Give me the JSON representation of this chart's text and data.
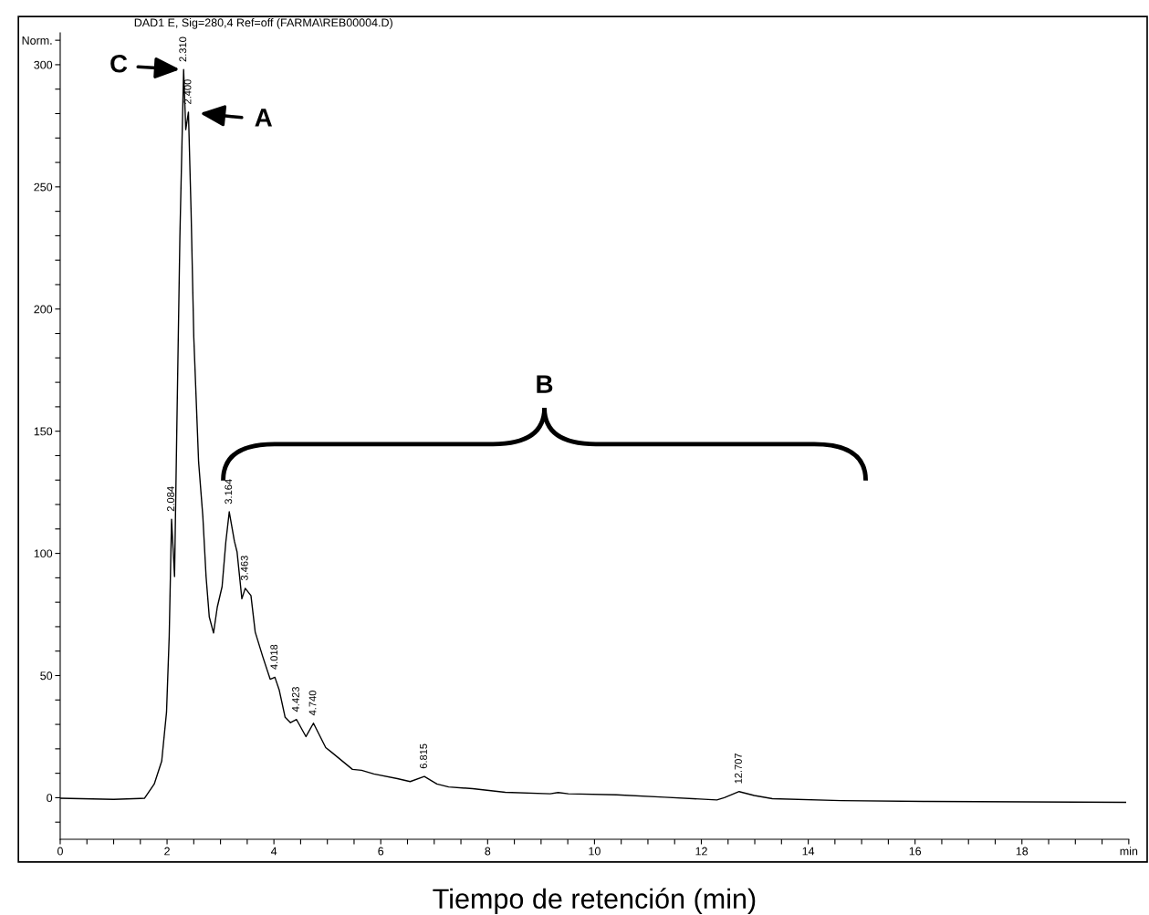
{
  "chart_data": {
    "type": "line",
    "title": "DAD1 E, Sig=280,4 Ref=off (FARMA\\REB00004.D)",
    "xlabel": "Tiempo de retención (min)",
    "x": [
      0,
      1.0,
      1.5,
      1.58,
      1.76,
      1.9,
      1.99,
      2.04,
      2.084,
      2.14,
      2.18,
      2.24,
      2.31,
      2.35,
      2.4,
      2.45,
      2.5,
      2.59,
      2.67,
      2.73,
      2.79,
      2.87,
      2.94,
      3.03,
      3.1,
      3.164,
      3.26,
      3.31,
      3.4,
      3.463,
      3.57,
      3.65,
      3.79,
      3.93,
      4.018,
      4.1,
      4.21,
      4.31,
      4.423,
      4.6,
      4.74,
      4.97,
      5.08,
      5.47,
      5.64,
      5.87,
      6.31,
      6.55,
      6.815,
      7.05,
      7.27,
      7.72,
      8.33,
      9.17,
      9.32,
      9.51,
      10.41,
      11.31,
      12.29,
      12.43,
      12.707,
      12.99,
      13.33,
      14.62,
      16.16,
      19.94
    ],
    "series": [
      {
        "color": "#000000",
        "values": [
          -0.2,
          -0.7,
          -0.3,
          -0.2,
          5.6,
          15,
          35,
          66,
          114,
          90.5,
          147.5,
          229.6,
          298,
          273.4,
          280.6,
          239.6,
          188.6,
          137.5,
          115,
          90.5,
          74,
          67.4,
          78,
          86.4,
          104.7,
          117,
          105,
          100.6,
          81.4,
          85.7,
          82.7,
          67.8,
          57.8,
          48.5,
          49.3,
          44,
          32.9,
          30.7,
          32,
          25,
          30.5,
          20.5,
          18.6,
          11.6,
          11.2,
          9.7,
          7.8,
          6.6,
          8.7,
          5.6,
          4.4,
          3.7,
          2.2,
          1.6,
          2.1,
          1.6,
          1.2,
          0.2,
          -0.9,
          0,
          2.5,
          0.9,
          -0.4,
          -1.2,
          -1.5,
          -1.9
        ]
      }
    ],
    "xlim": [
      0,
      20
    ],
    "xticks": [
      0,
      {
        "value": 0.5,
        "label": null
      },
      {
        "value": 1,
        "label": null
      },
      {
        "value": 1.5,
        "label": null
      },
      2,
      {
        "value": 2.5,
        "label": null
      },
      {
        "value": 3,
        "label": null
      },
      {
        "value": 3.5,
        "label": null
      },
      4,
      {
        "value": 4.5,
        "label": null
      },
      {
        "value": 5,
        "label": null
      },
      {
        "value": 5.5,
        "label": null
      },
      6,
      {
        "value": 6.5,
        "label": null
      },
      {
        "value": 7,
        "label": null
      },
      {
        "value": 7.5,
        "label": null
      },
      8,
      {
        "value": 8.5,
        "label": null
      },
      {
        "value": 9,
        "label": null
      },
      {
        "value": 9.5,
        "label": null
      },
      10,
      {
        "value": 10.5,
        "label": null
      },
      {
        "value": 11,
        "label": null
      },
      {
        "value": 11.5,
        "label": null
      },
      12,
      {
        "value": 12.5,
        "label": null
      },
      {
        "value": 13,
        "label": null
      },
      {
        "value": 13.5,
        "label": null
      },
      14,
      {
        "value": 14.5,
        "label": null
      },
      {
        "value": 15,
        "label": null
      },
      {
        "value": 15.5,
        "label": null
      },
      16,
      {
        "value": 16.5,
        "label": null
      },
      {
        "value": 17,
        "label": null
      },
      {
        "value": 17.5,
        "label": null
      },
      18,
      {
        "value": 18.5,
        "label": null
      },
      {
        "value": 19,
        "label": null
      },
      {
        "value": 19.5,
        "label": null
      },
      {
        "value": 20,
        "label": "min"
      }
    ],
    "ylim": [
      -17,
      313
    ],
    "yticks": [
      {
        "value": -10,
        "label": null
      },
      0,
      {
        "value": 10,
        "label": null
      },
      {
        "value": 20,
        "label": null
      },
      {
        "value": 30,
        "label": null
      },
      {
        "value": 40,
        "label": null
      },
      50,
      {
        "value": 60,
        "label": null
      },
      {
        "value": 70,
        "label": null
      },
      {
        "value": 80,
        "label": null
      },
      {
        "value": 90,
        "label": null
      },
      100,
      {
        "value": 110,
        "label": null
      },
      {
        "value": 120,
        "label": null
      },
      {
        "value": 130,
        "label": null
      },
      {
        "value": 140,
        "label": null
      },
      150,
      {
        "value": 160,
        "label": null
      },
      {
        "value": 170,
        "label": null
      },
      {
        "value": 180,
        "label": null
      },
      {
        "value": 190,
        "label": null
      },
      200,
      {
        "value": 210,
        "label": null
      },
      {
        "value": 220,
        "label": null
      },
      {
        "value": 230,
        "label": null
      },
      {
        "value": 240,
        "label": null
      },
      250,
      {
        "value": 260,
        "label": null
      },
      {
        "value": 270,
        "label": null
      },
      {
        "value": 280,
        "label": null
      },
      {
        "value": 290,
        "label": null
      },
      300,
      {
        "value": 310,
        "label": "Norm."
      }
    ],
    "annotations": [
      "B",
      {
        "text": "2.084",
        "x": 2.084,
        "y": 114
      },
      {
        "text": "2.310",
        "x": 2.31,
        "y": 298
      },
      {
        "text": "2.400",
        "x": 2.4,
        "y": 280.6
      },
      {
        "text": "3.164",
        "x": 3.164,
        "y": 117
      },
      {
        "text": "3.463",
        "x": 3.463,
        "y": 85.7
      },
      {
        "text": "4.018",
        "x": 4.018,
        "y": 49.3
      },
      {
        "text": "4.423",
        "x": 4.423,
        "y": 32
      },
      {
        "text": "4.740",
        "x": 4.74,
        "y": 30.5
      },
      {
        "text": "6.815",
        "x": 6.815,
        "y": 8.7
      },
      {
        "text": "12.707",
        "x": 12.707,
        "y": 2.5
      },
      {
        "text": "C",
        "x": 2.31,
        "y": 298
      },
      {
        "text": "A",
        "x": 2.4,
        "y": 280.6
      }
    ]
  }
}
